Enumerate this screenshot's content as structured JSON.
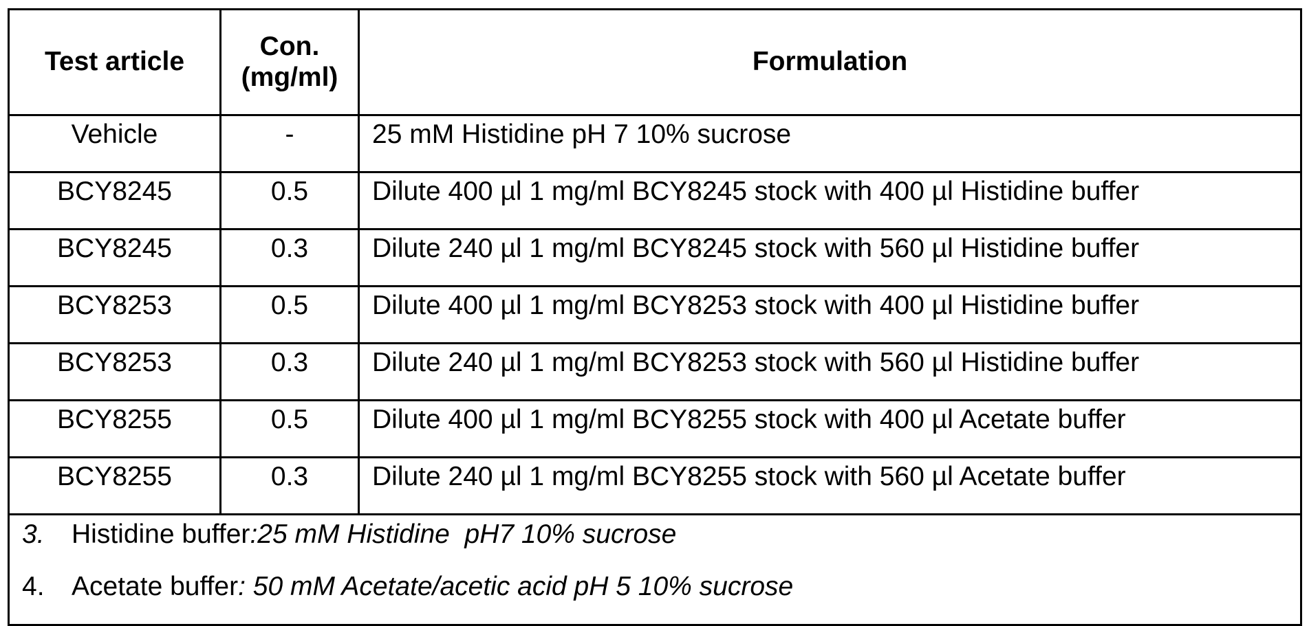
{
  "table": {
    "headers": [
      "Test article",
      "Con.\n(mg/ml)",
      "Formulation"
    ],
    "header_con_line1": "Con.",
    "header_con_line2": "(mg/ml)",
    "rows": [
      {
        "article": "Vehicle",
        "con": "-",
        "formulation": "25 mM Histidine pH 7 10% sucrose"
      },
      {
        "article": "BCY8245",
        "con": "0.5",
        "formulation": "Dilute 400 µl 1 mg/ml BCY8245 stock with 400 µl Histidine buffer"
      },
      {
        "article": "BCY8245",
        "con": "0.3",
        "formulation": "Dilute 240 µl 1 mg/ml BCY8245 stock with 560 µl Histidine buffer"
      },
      {
        "article": "BCY8253",
        "con": "0.5",
        "formulation": "Dilute 400 µl 1 mg/ml BCY8253 stock with 400 µl Histidine buffer"
      },
      {
        "article": "BCY8253",
        "con": "0.3",
        "formulation": "Dilute 240 µl 1 mg/ml BCY8253 stock with 560 µl Histidine buffer"
      },
      {
        "article": "BCY8255",
        "con": "0.5",
        "formulation": "Dilute 400 µl 1 mg/ml BCY8255 stock with 400 µl Acetate buffer"
      },
      {
        "article": "BCY8255",
        "con": "0.3",
        "formulation": "Dilute 240 µl 1 mg/ml BCY8255 stock with 560 µl Acetate buffer"
      }
    ],
    "notes": [
      {
        "number": "3.",
        "label": "Histidine buffer",
        "detail": ":25 mM Histidine  pH7 10% sucrose"
      },
      {
        "number": "4.",
        "label": "Acetate buffer",
        "detail": ": 50 mM Acetate/acetic acid pH 5 10% sucrose"
      }
    ]
  }
}
